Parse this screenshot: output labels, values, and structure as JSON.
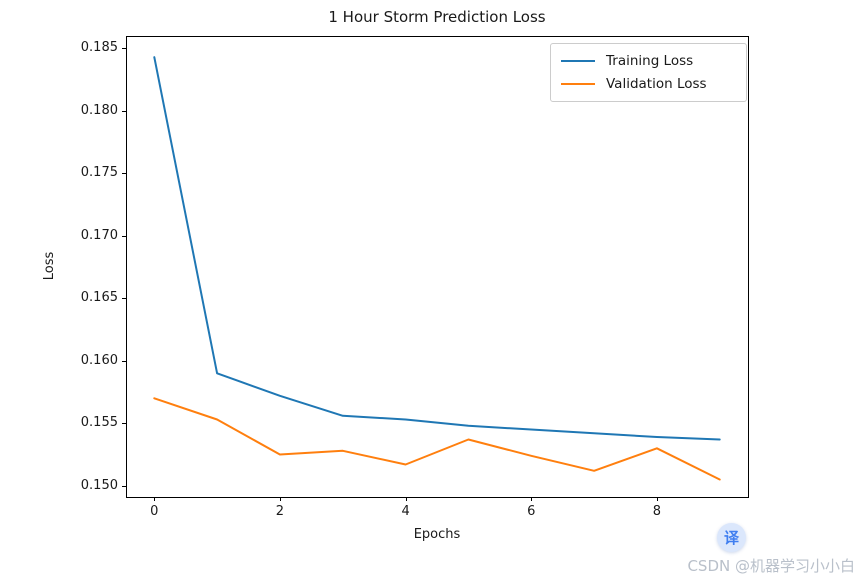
{
  "chart_data": {
    "type": "line",
    "title": "1 Hour Storm Prediction Loss",
    "xlabel": "Epochs",
    "ylabel": "Loss",
    "x": [
      0,
      1,
      2,
      3,
      4,
      5,
      6,
      7,
      8,
      9
    ],
    "series": [
      {
        "name": "Training Loss",
        "color": "#1f77b4",
        "values": [
          0.1843,
          0.159,
          0.1572,
          0.1556,
          0.1553,
          0.1548,
          0.1545,
          0.1542,
          0.1539,
          0.1537
        ]
      },
      {
        "name": "Validation Loss",
        "color": "#ff7f0e",
        "values": [
          0.157,
          0.1553,
          0.1525,
          0.1528,
          0.1517,
          0.1537,
          0.1524,
          0.1512,
          0.153,
          0.1505
        ]
      }
    ],
    "xticks": [
      0,
      2,
      4,
      6,
      8
    ],
    "xtick_labels": [
      "0",
      "2",
      "4",
      "6",
      "8"
    ],
    "yticks": [
      0.15,
      0.155,
      0.16,
      0.165,
      0.17,
      0.175,
      0.18,
      0.185
    ],
    "ytick_labels": [
      "0.150",
      "0.155",
      "0.160",
      "0.165",
      "0.170",
      "0.175",
      "0.180",
      "0.185"
    ],
    "xlim": [
      -0.45,
      9.45
    ],
    "ylim": [
      0.1491,
      0.186
    ],
    "legend_position": "upper right",
    "grid": false,
    "axis_color": "#000000"
  },
  "overlay": {
    "translate_button_label": "译",
    "watermark": "CSDN @机器学习小小白"
  }
}
